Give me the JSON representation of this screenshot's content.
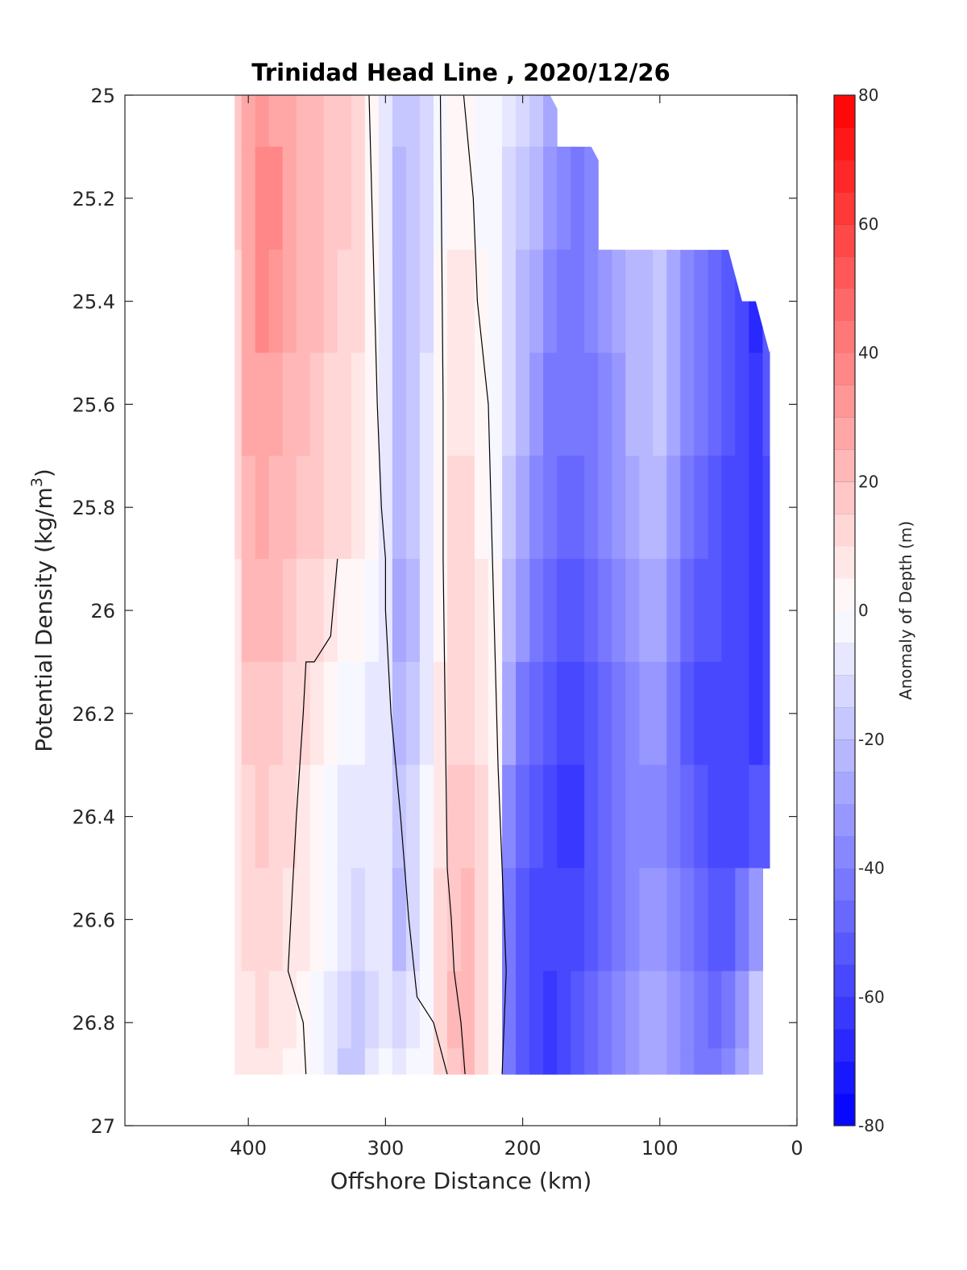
{
  "chart_data": {
    "type": "heatmap",
    "title": "Trinidad Head Line , 2020/12/26",
    "xlabel": "Offshore Distance (km)",
    "ylabel": "Potential Density (kg/m",
    "ylabel_sup": "3",
    "ylabel_tail": ")",
    "xlim": [
      490,
      0
    ],
    "x_reversed": true,
    "ylim": [
      25,
      27
    ],
    "y_reversed": true,
    "x_ticks": [
      400,
      300,
      200,
      100,
      0
    ],
    "x_tick_labels": [
      "400",
      "300",
      "200",
      "100",
      "0"
    ],
    "y_ticks": [
      25,
      25.2,
      25.4,
      25.6,
      25.8,
      26,
      26.2,
      26.4,
      26.6,
      26.8,
      27
    ],
    "y_tick_labels": [
      "25",
      "25.2",
      "25.4",
      "25.6",
      "25.8",
      "26",
      "26.2",
      "26.4",
      "26.6",
      "26.8",
      "27"
    ],
    "colorbar": {
      "label": "Anomaly of Depth (m)",
      "range": [
        -80,
        80
      ],
      "step": 5,
      "ticks": [
        80,
        60,
        40,
        20,
        0,
        -20,
        -40,
        -60,
        -80
      ],
      "tick_labels": [
        "80",
        "60",
        "40",
        "20",
        "0",
        "-20",
        "-40",
        "-60",
        "-80"
      ],
      "colormap": "blue-white-red",
      "negative_color": "#0000ff",
      "positive_color": "#ff0000",
      "zero_color": "#ffffff"
    },
    "data_extent": {
      "x_range": [
        410,
        20
      ],
      "density_bottom": 26.9,
      "surface_edge_x": [
        180,
        160,
        150,
        130,
        100,
        90,
        50,
        40,
        30,
        20,
        10
      ],
      "surface_edge_y": [
        25.0,
        25.1,
        25.1,
        25.2,
        25.2,
        25.3,
        25.3,
        25.4,
        25.4,
        25.5,
        25.3
      ]
    },
    "anomaly_columns": {
      "x": [
        410,
        400,
        390,
        380,
        370,
        360,
        350,
        340,
        330,
        320,
        310,
        300,
        290,
        280,
        270,
        260,
        250,
        240,
        230,
        220,
        210,
        200,
        190,
        180,
        170,
        160,
        150,
        140,
        130,
        120,
        110,
        100,
        90,
        80,
        70,
        60,
        50,
        40,
        30,
        20
      ],
      "y": [
        25.0,
        25.2,
        25.4,
        25.6,
        25.8,
        26.0,
        26.2,
        26.4,
        26.6,
        26.8,
        26.9
      ],
      "anomaly_m": [
        [
          15,
          15,
          12,
          10,
          10,
          8,
          8,
          8,
          8,
          5,
          5
        ],
        [
          25,
          28,
          28,
          25,
          22,
          20,
          15,
          12,
          10,
          8,
          8
        ],
        [
          30,
          35,
          35,
          28,
          25,
          22,
          18,
          15,
          12,
          10,
          8
        ],
        [
          28,
          35,
          32,
          27,
          24,
          20,
          16,
          14,
          12,
          8,
          7
        ],
        [
          25,
          28,
          27,
          24,
          20,
          17,
          14,
          12,
          8,
          5,
          4
        ],
        [
          22,
          24,
          22,
          20,
          18,
          14,
          12,
          8,
          5,
          2,
          1
        ],
        [
          20,
          22,
          20,
          18,
          15,
          10,
          5,
          3,
          2,
          -2,
          -3
        ],
        [
          18,
          18,
          15,
          14,
          12,
          5,
          2,
          -2,
          -5,
          -8,
          -10
        ],
        [
          15,
          15,
          12,
          10,
          10,
          2,
          -3,
          -8,
          -10,
          -15,
          -18
        ],
        [
          10,
          10,
          10,
          8,
          8,
          0,
          -5,
          -10,
          -12,
          -18,
          -18
        ],
        [
          3,
          2,
          2,
          1,
          1,
          -3,
          -8,
          -10,
          -10,
          -12,
          -10
        ],
        [
          -10,
          -10,
          -10,
          -10,
          -10,
          -10,
          -10,
          -10,
          -10,
          -8,
          -5
        ],
        [
          -20,
          -25,
          -25,
          -25,
          -25,
          -28,
          -22,
          -20,
          -22,
          -15,
          -8
        ],
        [
          -18,
          -20,
          -20,
          -20,
          -20,
          -22,
          -20,
          -15,
          -15,
          -8,
          -5
        ],
        [
          -12,
          -12,
          -12,
          -10,
          -10,
          -10,
          -8,
          -5,
          -3,
          -2,
          -2
        ],
        [
          -2,
          -1,
          1,
          2,
          3,
          4,
          5,
          8,
          10,
          12,
          10
        ],
        [
          1,
          3,
          6,
          8,
          10,
          12,
          14,
          16,
          18,
          20,
          18
        ],
        [
          0,
          2,
          5,
          8,
          10,
          12,
          14,
          18,
          22,
          22,
          20
        ],
        [
          -2,
          -1,
          1,
          3,
          4,
          6,
          8,
          10,
          12,
          12,
          10
        ],
        [
          -5,
          -5,
          -3,
          -2,
          -1,
          0,
          1,
          2,
          3,
          3,
          2
        ],
        [
          -10,
          -12,
          -15,
          -15,
          -18,
          -22,
          -30,
          -40,
          -45,
          -45,
          -45
        ],
        [
          -15,
          -18,
          -22,
          -25,
          -30,
          -35,
          -45,
          -50,
          -52,
          -55,
          -55
        ],
        [
          -20,
          -25,
          -30,
          -35,
          -40,
          -45,
          -50,
          -55,
          -58,
          -60,
          -60
        ],
        [
          -30,
          -35,
          -40,
          -42,
          -45,
          -50,
          -55,
          -58,
          -60,
          -62,
          -62
        ],
        [
          null,
          -40,
          -42,
          -45,
          -50,
          -55,
          -60,
          -62,
          -60,
          -58,
          -58
        ],
        [
          null,
          -42,
          -42,
          -45,
          -48,
          -52,
          -58,
          -62,
          -58,
          -55,
          -55
        ],
        [
          null,
          -40,
          -40,
          -42,
          -45,
          -50,
          -52,
          -55,
          -52,
          -50,
          -50
        ],
        [
          null,
          null,
          -35,
          -38,
          -40,
          -45,
          -48,
          -50,
          -48,
          -45,
          -45
        ],
        [
          null,
          null,
          -30,
          -32,
          -35,
          -38,
          -42,
          -45,
          -45,
          -40,
          -40
        ],
        [
          null,
          null,
          -25,
          -25,
          -28,
          -32,
          -38,
          -40,
          -38,
          -32,
          -32
        ],
        [
          null,
          null,
          -22,
          -22,
          -25,
          -30,
          -35,
          -38,
          -35,
          -28,
          -28
        ],
        [
          null,
          null,
          -20,
          -20,
          -25,
          -30,
          -35,
          -38,
          -32,
          -28,
          -28
        ],
        [
          null,
          null,
          -30,
          -30,
          -35,
          -40,
          -42,
          -45,
          -40,
          -35,
          -35
        ],
        [
          null,
          null,
          -40,
          -40,
          -45,
          -50,
          -52,
          -50,
          -45,
          -40,
          -40
        ],
        [
          null,
          null,
          -45,
          -45,
          -48,
          -55,
          -58,
          -55,
          -50,
          -45,
          -45
        ],
        [
          null,
          null,
          -50,
          -50,
          -52,
          -55,
          -60,
          -58,
          -52,
          -48,
          -45
        ],
        [
          null,
          null,
          -55,
          -55,
          -58,
          -58,
          -58,
          -58,
          -52,
          -45,
          -40
        ],
        [
          null,
          null,
          -60,
          -60,
          -60,
          -60,
          -60,
          -58,
          -45,
          -35,
          -30
        ],
        [
          null,
          null,
          -70,
          -62,
          -62,
          -62,
          -62,
          -55,
          -35,
          -20,
          -20
        ],
        [
          null,
          null,
          -55,
          -55,
          -58,
          -60,
          -60,
          -55,
          null,
          null,
          null
        ]
      ]
    },
    "zero_contours": [
      {
        "x": [
          312,
          308,
          306,
          303,
          300,
          300,
          296,
          289,
          283,
          277,
          265,
          255
        ],
        "y": [
          25.0,
          25.4,
          25.6,
          25.8,
          25.9,
          26.0,
          26.2,
          26.4,
          26.6,
          26.75,
          26.8,
          26.9
        ]
      },
      {
        "x": [
          260,
          259,
          258,
          258,
          257,
          256,
          255,
          252,
          250,
          245,
          242
        ],
        "y": [
          25.0,
          25.3,
          25.6,
          25.9,
          26.1,
          26.3,
          26.5,
          26.6,
          26.7,
          26.8,
          26.9
        ]
      },
      {
        "x": [
          243,
          236,
          233,
          225,
          222,
          220,
          218,
          215,
          212,
          215
        ],
        "y": [
          25.0,
          25.2,
          25.4,
          25.6,
          25.9,
          26.1,
          26.3,
          26.5,
          26.7,
          26.9
        ]
      },
      {
        "x": [
          335,
          340,
          352,
          358,
          360,
          365,
          368,
          371,
          360,
          358
        ],
        "y": [
          25.9,
          26.05,
          26.1,
          26.1,
          26.2,
          26.4,
          26.55,
          26.7,
          26.8,
          26.9
        ]
      }
    ]
  }
}
